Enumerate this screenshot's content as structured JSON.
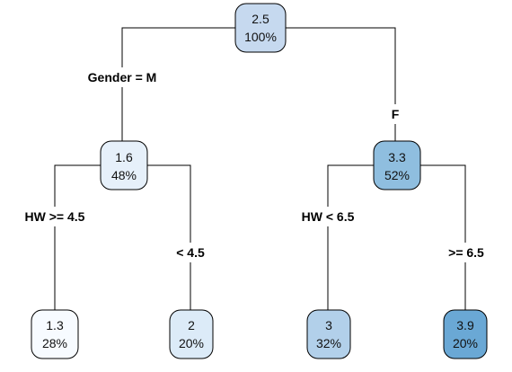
{
  "tree": {
    "root": {
      "value": "2.5",
      "percent": "100%",
      "fill": "#c6d9ef"
    },
    "root_split": {
      "left_label": "Gender = M",
      "right_label": "F"
    },
    "left_node": {
      "value": "1.6",
      "percent": "48%",
      "fill": "#e6f0fa"
    },
    "left_split": {
      "left_label": "HW >= 4.5",
      "right_label": "< 4.5"
    },
    "right_node": {
      "value": "3.3",
      "percent": "52%",
      "fill": "#8fbedf"
    },
    "right_split": {
      "left_label": "HW < 6.5",
      "right_label": ">= 6.5"
    },
    "leaves": [
      {
        "value": "1.3",
        "percent": "28%",
        "fill": "#f7fbff"
      },
      {
        "value": "2",
        "percent": "20%",
        "fill": "#dcebf8"
      },
      {
        "value": "3",
        "percent": "32%",
        "fill": "#b2d0ea"
      },
      {
        "value": "3.9",
        "percent": "20%",
        "fill": "#6aa8d5"
      }
    ]
  }
}
